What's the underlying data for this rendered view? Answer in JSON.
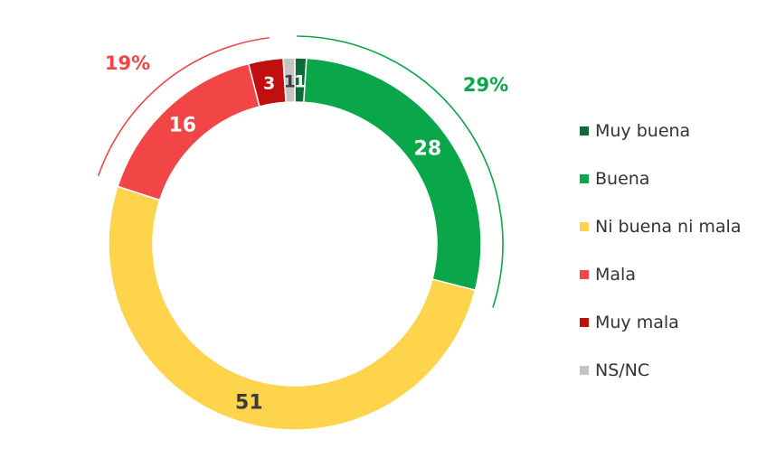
{
  "chart_data": {
    "type": "donut",
    "categories": [
      "Muy buena",
      "Buena",
      "Ni buena ni mala",
      "Mala",
      "Muy mala",
      "NS/NC"
    ],
    "values": [
      1,
      28,
      51,
      16,
      3,
      1
    ],
    "colors": [
      "#0d6b3a",
      "#0aa64a",
      "#fdd44c",
      "#f24545",
      "#bf0f0f",
      "#c4c4c4"
    ],
    "label_colors": [
      "#ffffff",
      "#ffffff",
      "#3c3c3c",
      "#ffffff",
      "#ffffff",
      "#3c3c3c"
    ],
    "legend_position": "right",
    "group_annotations": [
      {
        "label": "29%",
        "color": "#0aa64a",
        "covers": [
          "Muy buena",
          "Buena"
        ]
      },
      {
        "label": "19%",
        "color": "#f24545",
        "covers": [
          "Mala",
          "Muy mala"
        ]
      }
    ]
  }
}
